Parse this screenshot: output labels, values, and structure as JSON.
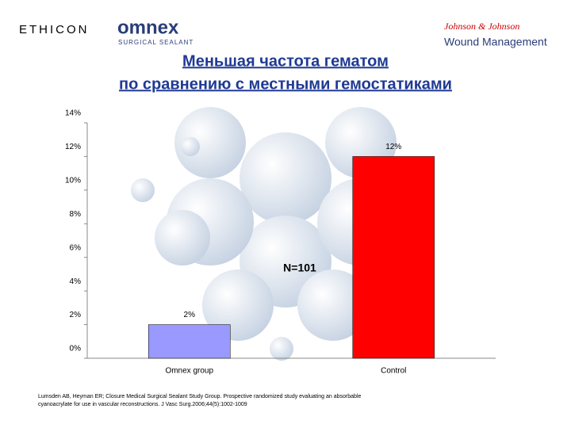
{
  "header": {
    "brand": "ETHICON",
    "product": "omnex",
    "product_sub": "SURGICAL SEALANT",
    "jj": "Johnson & Johnson",
    "division": "Wound Management"
  },
  "chart_data": {
    "type": "bar",
    "title": [
      "Меньшая частота гематом",
      "по сравнению с местными гемостатиками"
    ],
    "categories": [
      "Omnex group",
      "Control"
    ],
    "values": [
      2,
      12
    ],
    "value_labels": [
      "2%",
      "12%"
    ],
    "colors": [
      "#9999ff",
      "#ff0000"
    ],
    "ylim": [
      0,
      14
    ],
    "yticks": [
      {
        "value": 0,
        "label": "0%"
      },
      {
        "value": 2,
        "label": "2%"
      },
      {
        "value": 4,
        "label": "4%"
      },
      {
        "value": 6,
        "label": "6%"
      },
      {
        "value": 8,
        "label": "8%"
      },
      {
        "value": 10,
        "label": "10%"
      },
      {
        "value": 12,
        "label": "12%"
      },
      {
        "value": 14,
        "label": "14%"
      }
    ],
    "annotation": "N=101",
    "source": [
      "Lumsden AB, Heyman ER; Closure Medical Surgical Sealant Study Group. Prospective randomized study evaluating an absorbable",
      "cyanoacrylate for use in vascular reconstructions. J Vasc Surg.2006;44(5):1002-1009"
    ]
  }
}
